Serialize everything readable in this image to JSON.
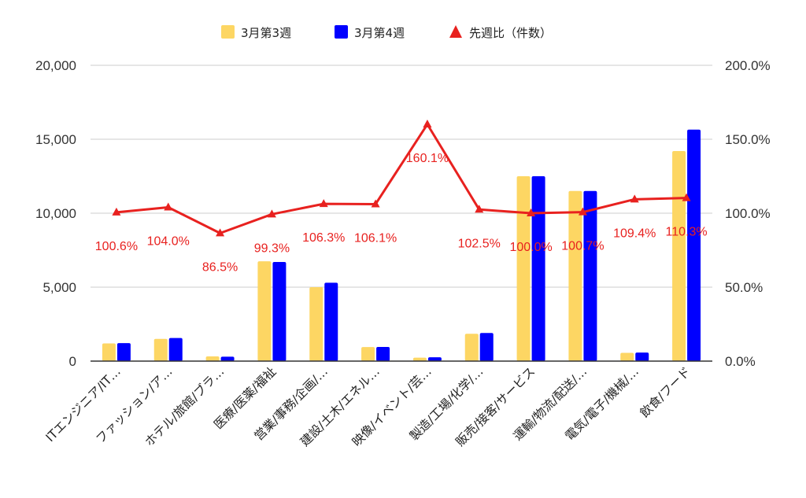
{
  "chart_data": {
    "type": "bar",
    "categories": [
      "ITエンジニア/IT…",
      "ファッション/ア…",
      "ホテル/旅館/ブラ…",
      "医療/医薬/福祉",
      "営業/事務/企画/…",
      "建設/土木/エネル…",
      "映像/イベント/芸…",
      "製造/工場/化学/…",
      "販売/接客/サービス",
      "運輸/物流/配送/…",
      "電気/電子/機械/…",
      "飲食/フード"
    ],
    "series": [
      {
        "name": "3月第3週",
        "color": "#fdd663",
        "values": [
          1200,
          1500,
          320,
          6750,
          5000,
          950,
          230,
          1850,
          12500,
          11500,
          560,
          14200
        ]
      },
      {
        "name": "3月第4週",
        "color": "#0000ff",
        "values": [
          1220,
          1560,
          300,
          6700,
          5300,
          960,
          260,
          1900,
          12500,
          11500,
          580,
          15650
        ]
      }
    ],
    "line_series": {
      "name": "先週比（件数）",
      "color": "#e8211f",
      "marker": "triangle",
      "values": [
        100.6,
        104.0,
        86.5,
        99.3,
        106.3,
        106.1,
        160.1,
        102.5,
        100.0,
        100.7,
        109.4,
        110.3
      ],
      "labels": [
        "100.6%",
        "104.0%",
        "86.5%",
        "99.3%",
        "106.3%",
        "106.1%",
        "160.1%",
        "102.5%",
        "100.0%",
        "100.7%",
        "109.4%",
        "110.3%"
      ]
    },
    "y_left": {
      "ylim": [
        0,
        20000
      ],
      "ticks": [
        0,
        5000,
        10000,
        15000,
        20000
      ],
      "tick_labels": [
        "0",
        "5,000",
        "10,000",
        "15,000",
        "20,000"
      ]
    },
    "y_right": {
      "ylim": [
        0,
        200
      ],
      "ticks": [
        0,
        50,
        100,
        150,
        200
      ],
      "tick_labels": [
        "0.0%",
        "50.0%",
        "100.0%",
        "150.0%",
        "200.0%"
      ]
    },
    "grid": true,
    "legend_position": "top-center",
    "gridline_color": "#cccccc",
    "axis_line_color": "#333333"
  }
}
